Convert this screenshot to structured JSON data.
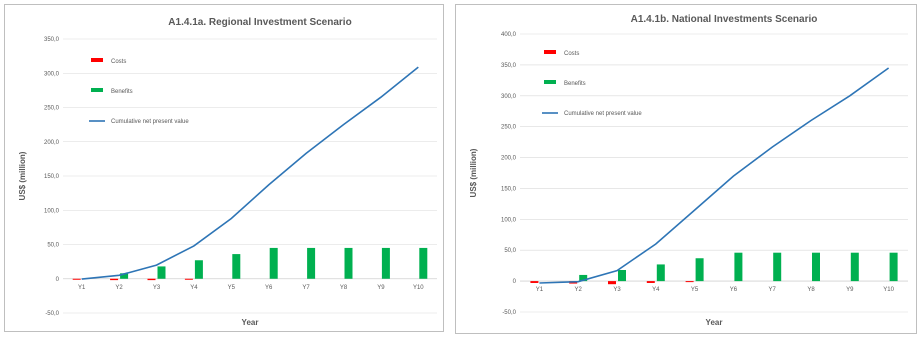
{
  "chart_data": [
    {
      "type": "bar",
      "title": "A1.4.1a. Regional Investment Scenario",
      "xlabel": "Year",
      "ylabel": "US$ (million)",
      "categories": [
        "Y1",
        "Y2",
        "Y3",
        "Y4",
        "Y5",
        "Y6",
        "Y7",
        "Y8",
        "Y9",
        "Y10"
      ],
      "ylim": [
        -50,
        350
      ],
      "yticks": [
        "-50,0",
        "0",
        "50,0",
        "100,0",
        "150,0",
        "200,0",
        "250,0",
        "300,0",
        "350,0"
      ],
      "grid": true,
      "legend_position": "top-left",
      "series": [
        {
          "name": "Costs",
          "kind": "bar",
          "color": "#ff0000",
          "values": [
            -0.5,
            -2,
            -2,
            -1,
            0,
            0,
            0,
            0,
            0,
            0
          ]
        },
        {
          "name": "Benefits",
          "kind": "bar",
          "color": "#00b050",
          "values": [
            0,
            8,
            18,
            27,
            36,
            45,
            45,
            45,
            45,
            45
          ]
        },
        {
          "name": "Cumulative net present value",
          "kind": "line",
          "color": "#2e75b6",
          "values": [
            -0.5,
            5,
            20,
            48,
            88,
            137,
            183,
            225,
            265,
            309
          ]
        }
      ]
    },
    {
      "type": "bar",
      "title": "A1.4.1b. National Investments Scenario",
      "xlabel": "Year",
      "ylabel": "US$ (million)",
      "categories": [
        "Y1",
        "Y2",
        "Y3",
        "Y4",
        "Y5",
        "Y6",
        "Y7",
        "Y8",
        "Y9",
        "Y10"
      ],
      "ylim": [
        -50,
        400
      ],
      "yticks": [
        "-50,0",
        "0",
        "50,0",
        "100,0",
        "150,0",
        "200,0",
        "250,0",
        "300,0",
        "350,0",
        "400,0"
      ],
      "grid": true,
      "legend_position": "top-left",
      "series": [
        {
          "name": "Costs",
          "kind": "bar",
          "color": "#ff0000",
          "values": [
            -3,
            -4,
            -5,
            -3,
            -1,
            0,
            0,
            0,
            0,
            0
          ]
        },
        {
          "name": "Benefits",
          "kind": "bar",
          "color": "#00b050",
          "values": [
            0,
            10,
            18,
            27,
            37,
            46,
            46,
            46,
            46,
            46
          ]
        },
        {
          "name": "Cumulative net present value",
          "kind": "line",
          "color": "#2e75b6",
          "values": [
            -3,
            -1,
            17,
            60,
            115,
            170,
            217,
            260,
            300,
            345
          ]
        }
      ]
    }
  ]
}
